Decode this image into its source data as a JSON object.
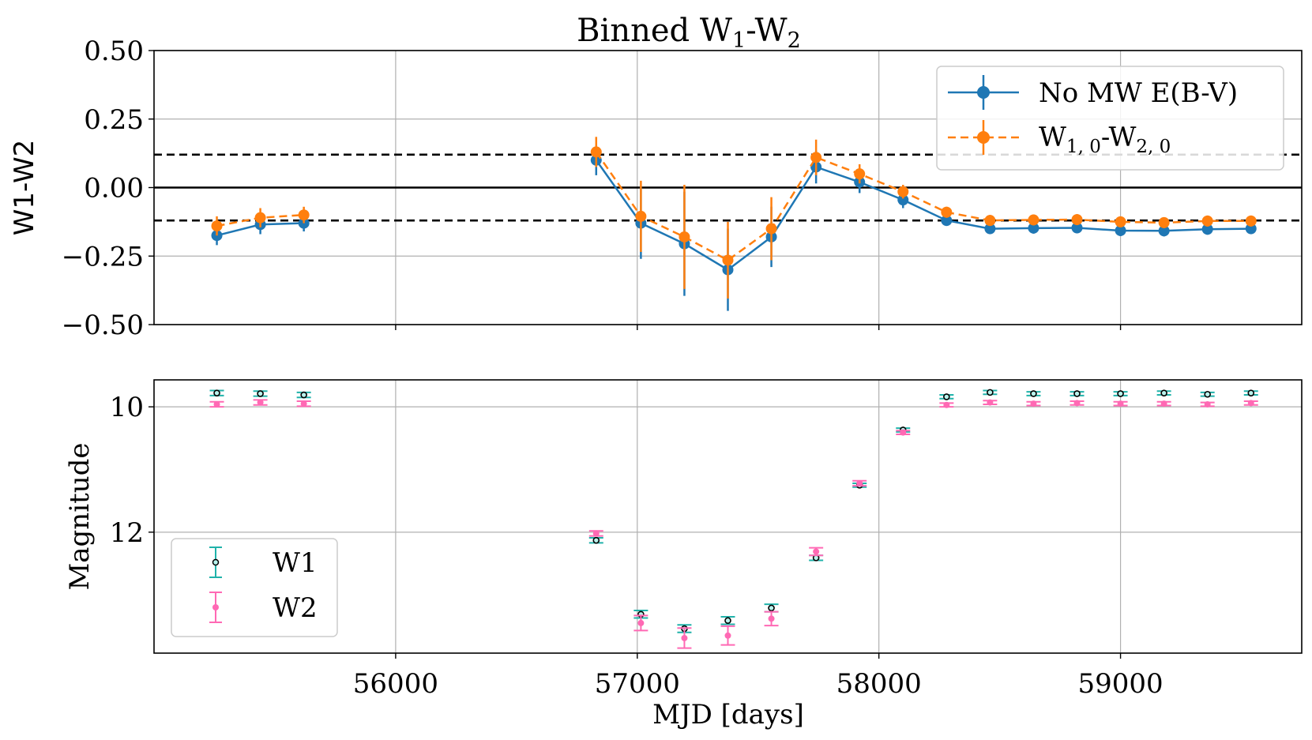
{
  "chart_data": [
    {
      "type": "line",
      "title": "Binned W",
      "title_parts": {
        "w1": "W",
        "sub1": "1",
        "dash": "-W",
        "sub2": "2"
      },
      "xlabel": "",
      "ylabel": "W1-W2",
      "xlim": [
        55000,
        59750
      ],
      "ylim": [
        -0.5,
        0.5
      ],
      "yticks": [
        0.5,
        0.25,
        0.0,
        -0.25,
        -0.5
      ],
      "ytick_labels": [
        "0.50",
        "0.25",
        "0.00",
        "−0.25",
        "−0.50"
      ],
      "xticks": [
        56000,
        57000,
        58000,
        59000
      ],
      "grid": true,
      "legend_position": "top-right",
      "reference_lines": [
        {
          "y": 0.0,
          "style": "solid",
          "color": "#000000"
        },
        {
          "y": 0.12,
          "style": "dashed",
          "color": "#000000"
        },
        {
          "y": -0.12,
          "style": "dashed",
          "color": "#000000"
        }
      ],
      "series": [
        {
          "name": "No MW E(B-V)",
          "color": "#1f77b4",
          "linestyle": "solid",
          "x": [
            55260,
            55440,
            55620,
            56830,
            57015,
            57195,
            57375,
            57555,
            57740,
            57920,
            58100,
            58280,
            58460,
            58640,
            58820,
            59000,
            59180,
            59360,
            59540
          ],
          "y": [
            -0.175,
            -0.135,
            -0.13,
            0.1,
            -0.13,
            -0.205,
            -0.3,
            -0.18,
            0.075,
            0.02,
            -0.045,
            -0.12,
            -0.15,
            -0.148,
            -0.147,
            -0.157,
            -0.158,
            -0.152,
            -0.15
          ],
          "yerr": [
            0.035,
            0.035,
            0.03,
            0.055,
            0.13,
            0.19,
            0.15,
            0.11,
            0.06,
            0.04,
            0.03,
            0.02,
            0.02,
            0.02,
            0.02,
            0.02,
            0.02,
            0.02,
            0.02
          ]
        },
        {
          "name_parts": {
            "w1": "W",
            "sub1": "1, 0",
            "dash": "-W",
            "sub2": "2, 0"
          },
          "color": "#ff7f0e",
          "linestyle": "dashed",
          "x": [
            55260,
            55440,
            55620,
            56830,
            57015,
            57195,
            57375,
            57555,
            57740,
            57920,
            58100,
            58280,
            58460,
            58640,
            58820,
            59000,
            59180,
            59360,
            59540
          ],
          "y": [
            -0.14,
            -0.11,
            -0.1,
            0.13,
            -0.105,
            -0.18,
            -0.265,
            -0.15,
            0.11,
            0.05,
            -0.015,
            -0.09,
            -0.12,
            -0.118,
            -0.117,
            -0.125,
            -0.128,
            -0.122,
            -0.122
          ],
          "yerr": [
            0.035,
            0.035,
            0.03,
            0.055,
            0.13,
            0.19,
            0.14,
            0.115,
            0.065,
            0.035,
            0.025,
            0.02,
            0.02,
            0.02,
            0.02,
            0.02,
            0.02,
            0.02,
            0.02
          ]
        }
      ]
    },
    {
      "type": "scatter",
      "title": "",
      "xlabel": "MJD [days]",
      "ylabel": "Magnitude",
      "xlim": [
        55000,
        59750
      ],
      "ylim": [
        13.93,
        9.57
      ],
      "y_inverted": true,
      "yticks": [
        10,
        12
      ],
      "ytick_labels": [
        "10",
        "12"
      ],
      "xticks": [
        56000,
        57000,
        58000,
        59000
      ],
      "xtick_labels": [
        "56000",
        "57000",
        "58000",
        "59000"
      ],
      "grid": true,
      "legend_position": "bottom-left",
      "series": [
        {
          "name": "W1",
          "color": "#20b2aa",
          "marker_face": "#b8f2ec",
          "x": [
            55260,
            55440,
            55620,
            56830,
            57015,
            57195,
            57375,
            57555,
            57740,
            57920,
            58100,
            58280,
            58460,
            58640,
            58820,
            59000,
            59180,
            59360,
            59540
          ],
          "y": [
            9.78,
            9.79,
            9.81,
            12.13,
            13.31,
            13.54,
            13.41,
            13.21,
            12.41,
            11.25,
            10.37,
            9.84,
            9.77,
            9.79,
            9.79,
            9.79,
            9.78,
            9.8,
            9.78
          ],
          "yerr": [
            0.04,
            0.04,
            0.04,
            0.04,
            0.06,
            0.06,
            0.06,
            0.06,
            0.04,
            0.03,
            0.03,
            0.03,
            0.03,
            0.03,
            0.03,
            0.03,
            0.03,
            0.03,
            0.03
          ]
        },
        {
          "name": "W2",
          "color": "#ff69b4",
          "marker_face": "#ff69b4",
          "x": [
            55260,
            55440,
            55620,
            56830,
            57015,
            57195,
            57375,
            57555,
            57740,
            57920,
            58100,
            58280,
            58460,
            58640,
            58820,
            59000,
            59180,
            59360,
            59540
          ],
          "y": [
            9.96,
            9.93,
            9.95,
            12.02,
            13.45,
            13.69,
            13.65,
            13.38,
            12.31,
            11.22,
            10.41,
            9.97,
            9.93,
            9.95,
            9.94,
            9.95,
            9.95,
            9.96,
            9.94
          ],
          "yerr": [
            0.04,
            0.04,
            0.04,
            0.04,
            0.12,
            0.16,
            0.15,
            0.11,
            0.06,
            0.04,
            0.03,
            0.03,
            0.03,
            0.03,
            0.03,
            0.03,
            0.03,
            0.03,
            0.03
          ]
        }
      ]
    }
  ]
}
